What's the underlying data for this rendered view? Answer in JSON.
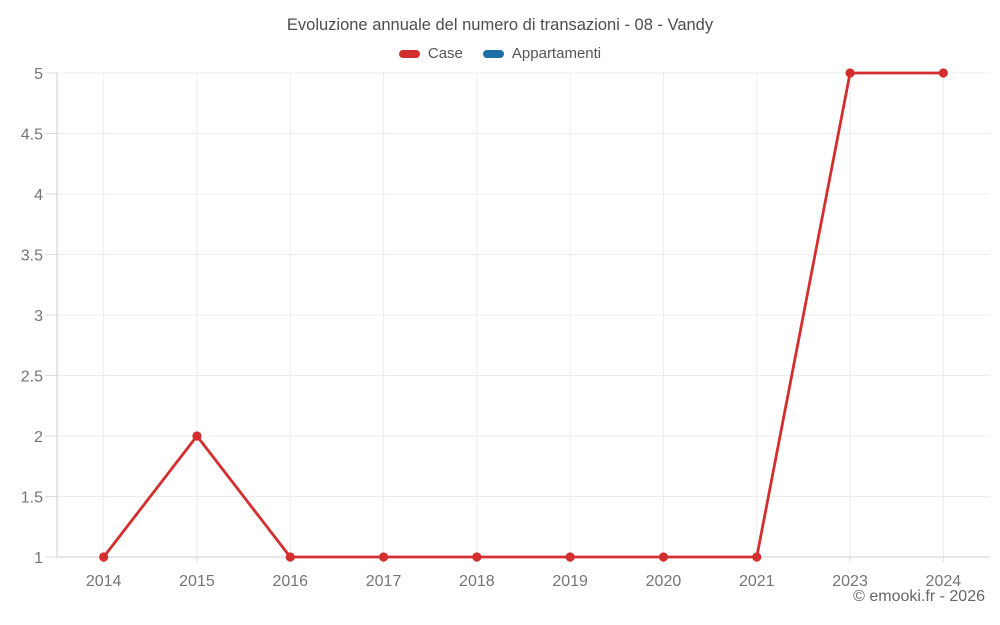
{
  "title": "Evoluzione annuale del numero di transazioni - 08 - Vandy",
  "copyright": "© emooki.fr - 2026",
  "colors": {
    "case_red": "#d32f2f",
    "appartamenti_blue": "#1c6ea4",
    "gridline": "#ededed",
    "axis_line": "#cccccc",
    "tick_mark": "#dddddd",
    "tick_label": "#757575"
  },
  "chart_data": {
    "type": "line",
    "title": "Evoluzione annuale del numero di transazioni - 08 - Vandy",
    "categories": [
      "2014",
      "2015",
      "2016",
      "2017",
      "2018",
      "2019",
      "2020",
      "2021",
      "2023",
      "2024"
    ],
    "series": [
      {
        "name": "Case",
        "color": "#d32f2f",
        "values": [
          1,
          2,
          1,
          1,
          1,
          1,
          1,
          1,
          5,
          5
        ]
      },
      {
        "name": "Appartamenti",
        "color": "#1c6ea4",
        "values": []
      }
    ],
    "xlabel": "",
    "ylabel": "",
    "ylim": [
      1,
      5
    ],
    "yticks": [
      1,
      1.5,
      2,
      2.5,
      3,
      3.5,
      4,
      4.5,
      5
    ],
    "grid": true,
    "legend_position": "top",
    "marker": "circle"
  }
}
